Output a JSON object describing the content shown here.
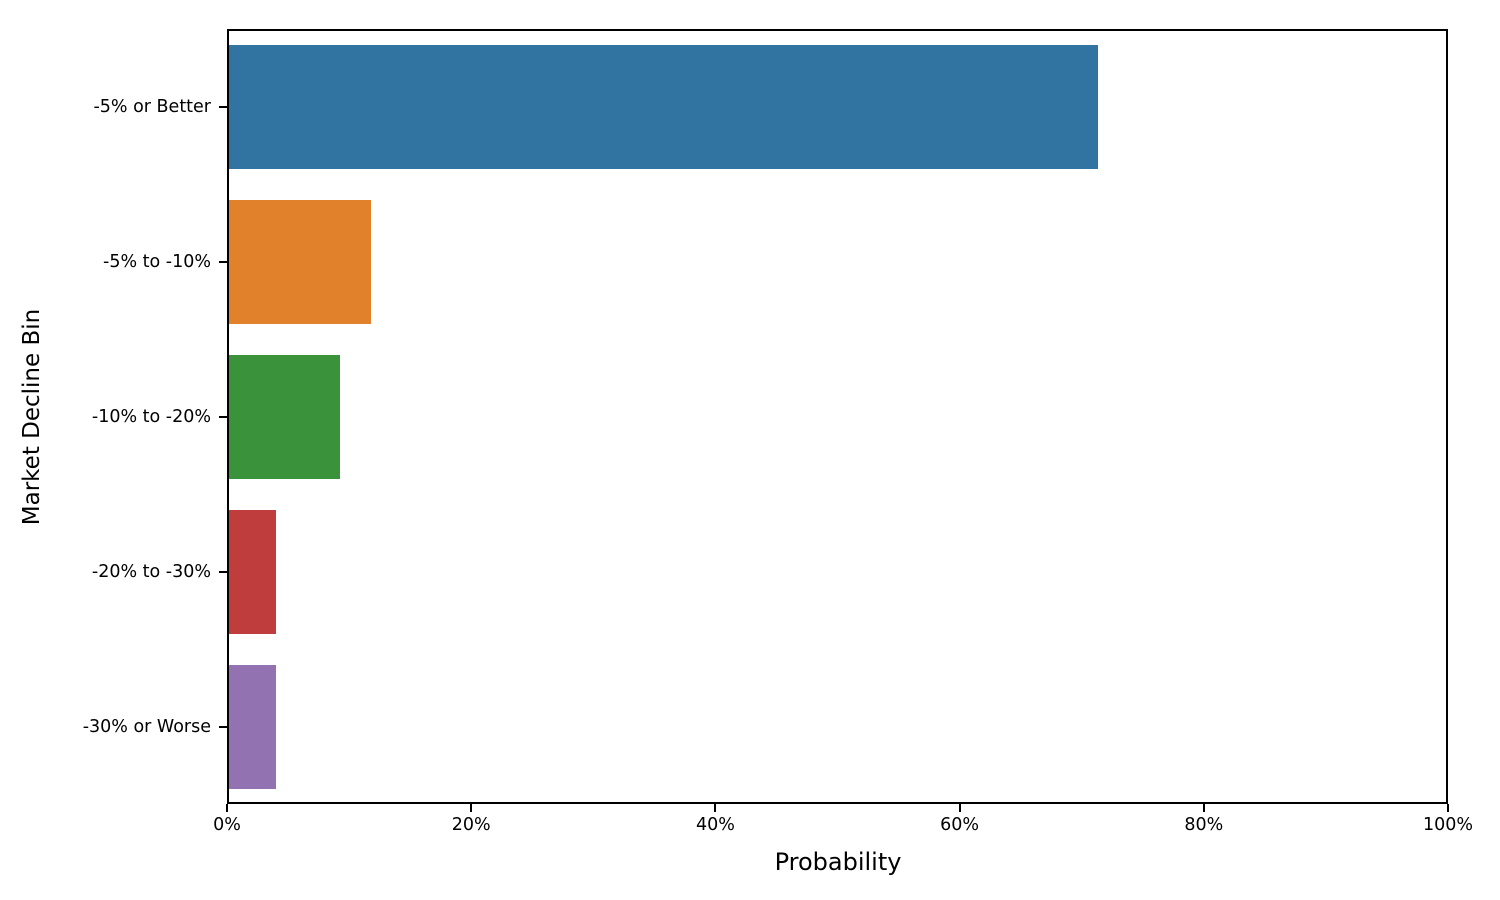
{
  "chart_data": {
    "type": "bar",
    "orientation": "horizontal",
    "title": "",
    "xlabel": "Probability",
    "ylabel": "Market Decline Bin",
    "categories": [
      "-5% or Better",
      "-5% to -10%",
      "-10% to -20%",
      "-20% to -30%",
      "-30% or Worse"
    ],
    "values": [
      71.4,
      11.7,
      9.1,
      3.9,
      3.9
    ],
    "value_unit": "%",
    "bar_colors": [
      "#3274a1",
      "#e1812c",
      "#3a923a",
      "#c03d3e",
      "#9372b2"
    ],
    "xlim": [
      0,
      100
    ],
    "x_tick_values": [
      0,
      20,
      40,
      60,
      80,
      100
    ],
    "x_tick_labels": [
      "0%",
      "20%",
      "40%",
      "60%",
      "80%",
      "100%"
    ],
    "grid": false,
    "legend": false,
    "spine_color": "#000000",
    "background_color": "#ffffff"
  }
}
